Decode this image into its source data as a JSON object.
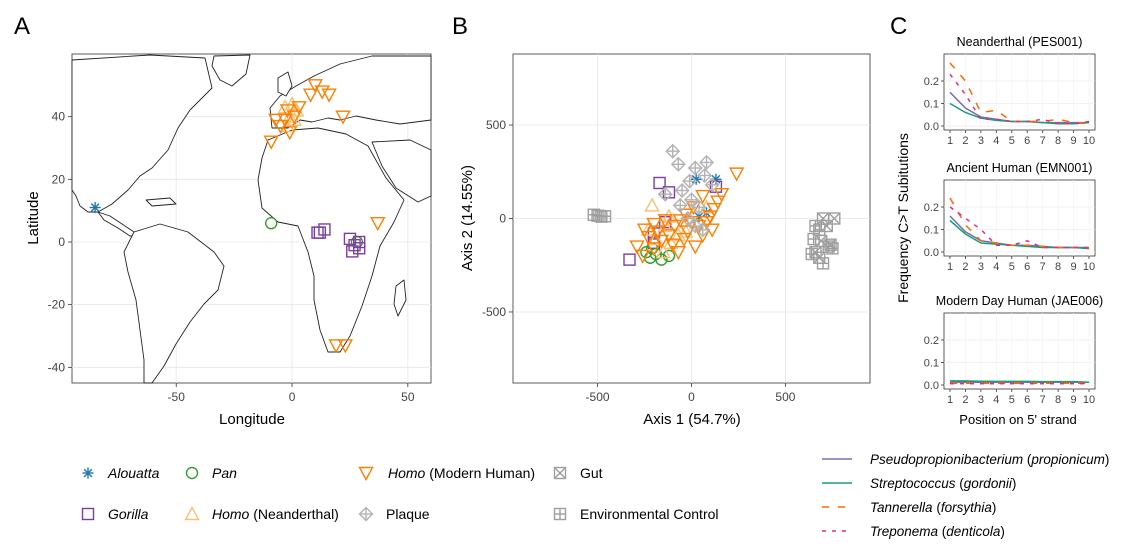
{
  "figure": {
    "panel_labels": [
      "A",
      "B",
      "C"
    ]
  },
  "colors": {
    "alouatta": "#1f78b4",
    "pan": "#33a02c",
    "gorilla": "#7b3fa0",
    "homo_neanderthal": "#fdbf6f",
    "homo_modern": "#ff7f00",
    "plaque": "#b3b3b3",
    "gut": "#9e9e9e",
    "env": "#9e9e9e",
    "pseudoprop": "#7570b3",
    "strepto": "#1b9e77",
    "tannerella": "#ff6a00",
    "treponema": "#e7298a"
  },
  "chart_data": [
    {
      "type": "scatter",
      "panel": "A",
      "xlabel": "Longitude",
      "ylabel": "Latitude",
      "xlim": [
        -95,
        60
      ],
      "ylim": [
        -45,
        60
      ],
      "xticks": [
        -50,
        0,
        50
      ],
      "yticks": [
        -40,
        -20,
        0,
        20,
        40
      ],
      "xtick_labels": [
        "-50",
        "0",
        "50"
      ],
      "ytick_labels": [
        "-40",
        "-20",
        "0",
        "20",
        "40"
      ],
      "grid": true,
      "series": [
        {
          "name": "Alouatta",
          "points": [
            [
              -85,
              11
            ]
          ]
        },
        {
          "name": "Pan",
          "points": [
            [
              -9,
              6
            ],
            [
              28,
              0
            ]
          ]
        },
        {
          "name": "Gorilla",
          "points": [
            [
              12,
              3
            ],
            [
              14,
              4
            ],
            [
              11,
              3
            ],
            [
              25,
              1
            ],
            [
              27,
              -1
            ],
            [
              29,
              -2
            ],
            [
              26,
              -3
            ],
            [
              29,
              0
            ]
          ]
        },
        {
          "name": "Homo (Neanderthal)",
          "points": [
            [
              -3,
              43
            ],
            [
              0,
              44
            ],
            [
              -1,
              40
            ],
            [
              2,
              42
            ],
            [
              -2,
              37
            ],
            [
              1,
              39
            ]
          ]
        },
        {
          "name": "Homo (Modern Human)",
          "points": [
            [
              8,
              47
            ],
            [
              13,
              48
            ],
            [
              16,
              47
            ],
            [
              10,
              50
            ],
            [
              -2,
              42
            ],
            [
              1,
              40
            ],
            [
              -5,
              37
            ],
            [
              -1,
              35
            ],
            [
              -3,
              39
            ],
            [
              22,
              40
            ],
            [
              -9,
              32
            ],
            [
              37,
              6
            ],
            [
              19,
              -33
            ],
            [
              23,
              -33
            ],
            [
              -7,
              39
            ],
            [
              3,
              43
            ]
          ]
        }
      ]
    },
    {
      "type": "scatter",
      "panel": "B",
      "xlabel": "Axis 1 (54.7%)",
      "ylabel": "Axis 2 (14.55%)",
      "xlim": [
        -950,
        950
      ],
      "ylim": [
        -880,
        880
      ],
      "xticks": [
        -500,
        0,
        500
      ],
      "yticks": [
        -500,
        0,
        500
      ],
      "xtick_labels": [
        "-500",
        "0",
        "500"
      ],
      "ytick_labels": [
        "-500",
        "0",
        "500"
      ],
      "grid": true,
      "series": [
        {
          "name": "Alouatta",
          "points": [
            [
              25,
              210
            ],
            [
              130,
              210
            ],
            [
              40,
              10
            ],
            [
              80,
              30
            ]
          ]
        },
        {
          "name": "Gorilla",
          "points": [
            [
              -330,
              -220
            ],
            [
              -200,
              -80
            ],
            [
              -140,
              -20
            ],
            [
              -170,
              190
            ],
            [
              -120,
              140
            ],
            [
              130,
              170
            ],
            [
              -200,
              -130
            ]
          ]
        },
        {
          "name": "Pan",
          "points": [
            [
              -240,
              -180
            ],
            [
              -220,
              -210
            ],
            [
              -190,
              -190
            ],
            [
              -160,
              -220
            ],
            [
              -120,
              -200
            ],
            [
              -210,
              -160
            ]
          ]
        },
        {
          "name": "Homo (Neanderthal)",
          "points": [
            [
              -190,
              -110
            ],
            [
              -230,
              -60
            ],
            [
              -140,
              -40
            ],
            [
              -110,
              -130
            ],
            [
              -70,
              -90
            ],
            [
              -30,
              -70
            ],
            [
              -150,
              -180
            ],
            [
              80,
              60
            ],
            [
              -210,
              70
            ],
            [
              -120,
              10
            ]
          ]
        },
        {
          "name": "Homo (Modern Human)",
          "points": [
            [
              -290,
              -150
            ],
            [
              -260,
              -200
            ],
            [
              -230,
              -100
            ],
            [
              -250,
              -60
            ],
            [
              -200,
              -160
            ],
            [
              -180,
              -70
            ],
            [
              -160,
              -120
            ],
            [
              -140,
              -10
            ],
            [
              -120,
              -90
            ],
            [
              -100,
              -140
            ],
            [
              -90,
              -40
            ],
            [
              -70,
              -180
            ],
            [
              -60,
              -10
            ],
            [
              -40,
              -110
            ],
            [
              -20,
              -70
            ],
            [
              0,
              -20
            ],
            [
              20,
              -150
            ],
            [
              40,
              -40
            ],
            [
              60,
              -90
            ],
            [
              80,
              -20
            ],
            [
              100,
              10
            ],
            [
              110,
              -60
            ],
            [
              120,
              50
            ],
            [
              140,
              90
            ],
            [
              160,
              130
            ],
            [
              240,
              240
            ],
            [
              10,
              60
            ],
            [
              -30,
              20
            ],
            [
              60,
              120
            ],
            [
              -200,
              -30
            ]
          ]
        },
        {
          "name": "Plaque",
          "points": [
            [
              -100,
              360
            ],
            [
              -70,
              290
            ],
            [
              20,
              270
            ],
            [
              80,
              300
            ],
            [
              -140,
              130
            ],
            [
              -50,
              150
            ],
            [
              0,
              100
            ],
            [
              40,
              60
            ],
            [
              -20,
              0
            ],
            [
              20,
              -40
            ],
            [
              60,
              -60
            ],
            [
              -60,
              70
            ],
            [
              110,
              180
            ],
            [
              -10,
              200
            ],
            [
              70,
              230
            ]
          ]
        },
        {
          "name": "Gut",
          "points": [
            [
              700,
              0
            ],
            [
              760,
              0
            ],
            [
              720,
              -40
            ],
            [
              740,
              -140
            ],
            [
              690,
              -120
            ],
            [
              660,
              -180
            ],
            [
              680,
              -210
            ]
          ]
        },
        {
          "name": "Environmental Control",
          "points": [
            [
              -520,
              20
            ],
            [
              -500,
              15
            ],
            [
              -480,
              10
            ],
            [
              -460,
              12
            ],
            [
              660,
              -40
            ],
            [
              650,
              -110
            ],
            [
              640,
              -190
            ],
            [
              700,
              -240
            ],
            [
              730,
              -150
            ],
            [
              750,
              -160
            ],
            [
              680,
              -60
            ]
          ]
        }
      ]
    },
    {
      "type": "line",
      "panel": "C",
      "subplots": [
        {
          "title": "Neanderthal (PES001)",
          "x": [
            1,
            2,
            3,
            4,
            5,
            6,
            7,
            8,
            9,
            10
          ],
          "ylim": [
            0,
            0.32
          ],
          "yticks": [
            0.0,
            0.1,
            0.2
          ],
          "ytick_labels": [
            "0.0",
            "0.1",
            "0.2"
          ],
          "series": [
            {
              "name": "Pseudopropionibacterium (propionicum)",
              "values": [
                0.15,
                0.08,
                0.04,
                0.03,
                0.02,
                0.02,
                0.015,
                0.015,
                0.015,
                0.015
              ]
            },
            {
              "name": "Streptococcus (gordonii)",
              "values": [
                0.1,
                0.06,
                0.035,
                0.025,
                0.02,
                0.02,
                0.015,
                0.01,
                0.01,
                0.015
              ]
            },
            {
              "name": "Tannerella (forsythia)",
              "values": [
                0.28,
                0.2,
                0.06,
                0.07,
                0.02,
                0.02,
                0.02,
                0.03,
                0.015,
                0.01
              ]
            },
            {
              "name": "Treponema (denticola)",
              "values": [
                0.23,
                0.14,
                0.03,
                0.03,
                0.02,
                0.02,
                0.03,
                0.01,
                0.01,
                0.02
              ]
            }
          ]
        },
        {
          "title": "Ancient Human (EMN001)",
          "x": [
            1,
            2,
            3,
            4,
            5,
            6,
            7,
            8,
            9,
            10
          ],
          "ylim": [
            0,
            0.32
          ],
          "yticks": [
            0.0,
            0.1,
            0.2
          ],
          "ytick_labels": [
            "0.0",
            "0.1",
            "0.2"
          ],
          "series": [
            {
              "name": "Pseudopropionibacterium (propionicum)",
              "values": [
                0.16,
                0.09,
                0.05,
                0.04,
                0.03,
                0.03,
                0.025,
                0.02,
                0.02,
                0.02
              ]
            },
            {
              "name": "Streptococcus (gordonii)",
              "values": [
                0.14,
                0.08,
                0.04,
                0.035,
                0.03,
                0.025,
                0.02,
                0.02,
                0.02,
                0.015
              ]
            },
            {
              "name": "Tannerella (forsythia)",
              "values": [
                0.24,
                0.12,
                0.05,
                0.04,
                0.03,
                0.03,
                0.025,
                0.02,
                0.02,
                0.015
              ]
            },
            {
              "name": "Treponema (denticola)",
              "values": [
                0.2,
                0.15,
                0.1,
                0.03,
                0.03,
                0.05,
                0.02,
                0.02,
                0.02,
                0.02
              ]
            }
          ]
        },
        {
          "title": "Modern Day Human (JAE006)",
          "x": [
            1,
            2,
            3,
            4,
            5,
            6,
            7,
            8,
            9,
            10
          ],
          "ylim": [
            0,
            0.32
          ],
          "yticks": [
            0.0,
            0.1,
            0.2
          ],
          "ytick_labels": [
            "0.0",
            "0.1",
            "0.2"
          ],
          "series": [
            {
              "name": "Pseudopropionibacterium (propionicum)",
              "values": [
                0.012,
                0.012,
                0.012,
                0.012,
                0.012,
                0.012,
                0.012,
                0.012,
                0.012,
                0.012
              ]
            },
            {
              "name": "Streptococcus (gordonii)",
              "values": [
                0.018,
                0.018,
                0.017,
                0.016,
                0.016,
                0.016,
                0.015,
                0.015,
                0.015,
                0.012
              ]
            },
            {
              "name": "Tannerella (forsythia)",
              "values": [
                0.008,
                0.008,
                0.008,
                0.008,
                0.008,
                0.008,
                0.008,
                0.008,
                0.008,
                0.008
              ]
            },
            {
              "name": "Treponema (denticola)",
              "values": [
                0.006,
                0.006,
                0.006,
                0.006,
                0.006,
                0.006,
                0.006,
                0.006,
                0.006,
                0.006
              ]
            }
          ]
        }
      ],
      "xlabel": "Position on 5' strand",
      "ylabel": "Frequency C>T Subitutions",
      "xtick_labels": [
        "1",
        "2",
        "3",
        "4",
        "5",
        "6",
        "7",
        "8",
        "9",
        "10"
      ]
    }
  ],
  "legend_samples": [
    {
      "key": "alouatta",
      "shape": "asterisk",
      "italic": "Alouatta",
      "suffix": ""
    },
    {
      "key": "pan",
      "shape": "circle",
      "italic": "Pan",
      "suffix": ""
    },
    {
      "key": "homo_modern",
      "shape": "tri-down",
      "italic": "Homo",
      "suffix": " (Modern Human)"
    },
    {
      "key": "gut",
      "shape": "square-x",
      "italic": "",
      "suffix": "Gut"
    },
    {
      "key": "gorilla",
      "shape": "square",
      "italic": "Gorilla",
      "suffix": ""
    },
    {
      "key": "homo_neanderthal",
      "shape": "tri-up",
      "italic": "Homo",
      "suffix": " (Neanderthal)"
    },
    {
      "key": "plaque",
      "shape": "diamond-plus",
      "italic": "",
      "suffix": "Plaque"
    },
    {
      "key": "env",
      "shape": "square-plus",
      "italic": "",
      "suffix": "Environmental Control"
    }
  ],
  "legend_taxa": [
    {
      "key": "pseudoprop",
      "dash": "",
      "italic": "Pseudopropionibacterium",
      "suffix": " (",
      "italic2": "propionicum",
      "end": ")"
    },
    {
      "key": "strepto",
      "dash": "",
      "italic": "Streptococcus",
      "suffix": " (",
      "italic2": "gordonii",
      "end": ")"
    },
    {
      "key": "tannerella",
      "dash": "7,9",
      "italic": "Tannerella",
      "suffix": " (",
      "italic2": "forsythia",
      "end": ")"
    },
    {
      "key": "treponema",
      "dash": "4,6",
      "italic": "Treponema",
      "suffix": " (",
      "italic2": "denticola",
      "end": ")"
    }
  ]
}
